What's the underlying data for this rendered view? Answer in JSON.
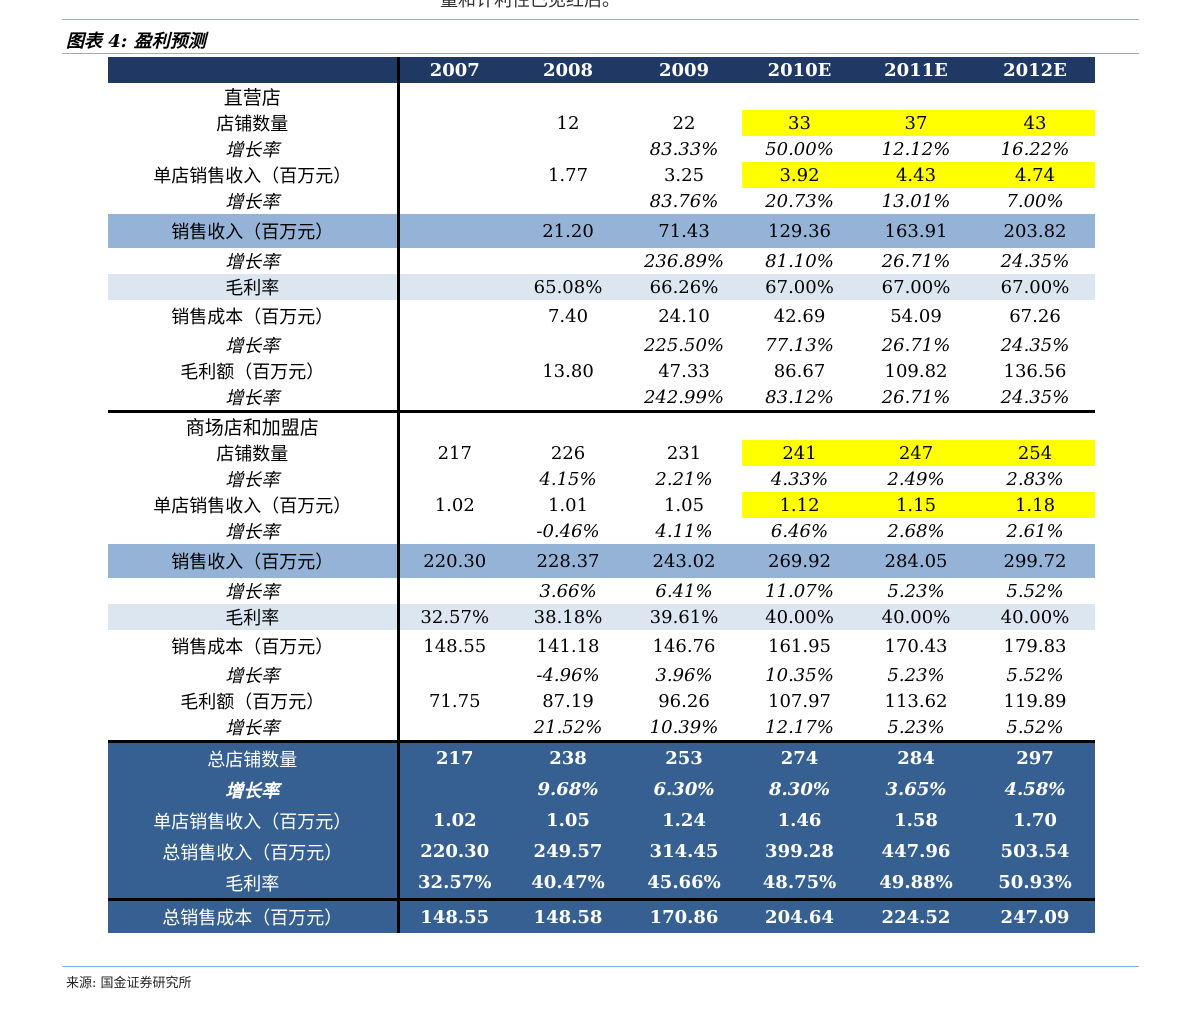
{
  "top_text": "量和计利性已见红后。",
  "caption": "图表 4:  盈利预测",
  "source": "来源:  国金证券研究所",
  "columns": [
    "2007",
    "2008",
    "2009",
    "2010E",
    "2011E",
    "2012E"
  ],
  "rows": [
    {
      "label": "直营店",
      "style": "sect",
      "cells": [
        "",
        "",
        "",
        "",
        "",
        ""
      ]
    },
    {
      "label": "店铺数量",
      "style": "r",
      "cells": [
        "",
        "12",
        "22",
        "33",
        "37",
        "43"
      ],
      "yellow": [
        3,
        4,
        5
      ]
    },
    {
      "label": "增长率",
      "style": "r it",
      "cells": [
        "",
        "",
        "83.33%",
        "50.00%",
        "12.12%",
        "16.22%"
      ]
    },
    {
      "label": "单店销售收入（百万元）",
      "style": "r",
      "cells": [
        "",
        "1.77",
        "3.25",
        "3.92",
        "4.43",
        "4.74"
      ],
      "yellow": [
        3,
        4,
        5
      ]
    },
    {
      "label": "增长率",
      "style": "r it",
      "cells": [
        "",
        "",
        "83.76%",
        "20.73%",
        "13.01%",
        "7.00%"
      ]
    },
    {
      "label": "销售收入（百万元）",
      "style": "band",
      "cells": [
        "",
        "21.20",
        "71.43",
        "129.36",
        "163.91",
        "203.82"
      ]
    },
    {
      "label": "增长率",
      "style": "r it",
      "cells": [
        "",
        "",
        "236.89%",
        "81.10%",
        "26.71%",
        "24.35%"
      ]
    },
    {
      "label": "毛利率",
      "style": "r light",
      "cells": [
        "",
        "65.08%",
        "66.26%",
        "67.00%",
        "67.00%",
        "67.00%"
      ]
    },
    {
      "label": "销售成本（百万元）",
      "style": "r tall",
      "cells": [
        "",
        "7.40",
        "24.10",
        "42.69",
        "54.09",
        "67.26"
      ]
    },
    {
      "label": "增长率",
      "style": "r it",
      "cells": [
        "",
        "",
        "225.50%",
        "77.13%",
        "26.71%",
        "24.35%"
      ]
    },
    {
      "label": "毛利额（百万元）",
      "style": "r",
      "cells": [
        "",
        "13.80",
        "47.33",
        "86.67",
        "109.82",
        "136.56"
      ]
    },
    {
      "label": "增长率",
      "style": "r it",
      "cells": [
        "",
        "",
        "242.99%",
        "83.12%",
        "26.71%",
        "24.35%"
      ]
    },
    {
      "label": "商场店和加盟店",
      "style": "sect sep",
      "cells": [
        "",
        "",
        "",
        "",
        "",
        ""
      ]
    },
    {
      "label": "店铺数量",
      "style": "r",
      "cells": [
        "217",
        "226",
        "231",
        "241",
        "247",
        "254"
      ],
      "yellow": [
        3,
        4,
        5
      ]
    },
    {
      "label": "增长率",
      "style": "r it",
      "cells": [
        "",
        "4.15%",
        "2.21%",
        "4.33%",
        "2.49%",
        "2.83%"
      ]
    },
    {
      "label": "单店销售收入（百万元）",
      "style": "r",
      "cells": [
        "1.02",
        "1.01",
        "1.05",
        "1.12",
        "1.15",
        "1.18"
      ],
      "yellow": [
        3,
        4,
        5
      ]
    },
    {
      "label": "增长率",
      "style": "r it",
      "cells": [
        "",
        "-0.46%",
        "4.11%",
        "6.46%",
        "2.68%",
        "2.61%"
      ]
    },
    {
      "label": "销售收入（百万元）",
      "style": "band",
      "cells": [
        "220.30",
        "228.37",
        "243.02",
        "269.92",
        "284.05",
        "299.72"
      ]
    },
    {
      "label": "增长率",
      "style": "r it",
      "cells": [
        "",
        "3.66%",
        "6.41%",
        "11.07%",
        "5.23%",
        "5.52%"
      ]
    },
    {
      "label": "毛利率",
      "style": "r light",
      "cells": [
        "32.57%",
        "38.18%",
        "39.61%",
        "40.00%",
        "40.00%",
        "40.00%"
      ]
    },
    {
      "label": "销售成本（百万元）",
      "style": "r tall",
      "cells": [
        "148.55",
        "141.18",
        "146.76",
        "161.95",
        "170.43",
        "179.83"
      ]
    },
    {
      "label": "增长率",
      "style": "r it",
      "cells": [
        "",
        "-4.96%",
        "3.96%",
        "10.35%",
        "5.23%",
        "5.52%"
      ]
    },
    {
      "label": "毛利额（百万元）",
      "style": "r",
      "cells": [
        "71.75",
        "87.19",
        "96.26",
        "107.97",
        "113.62",
        "119.89"
      ]
    },
    {
      "label": "增长率",
      "style": "r it",
      "cells": [
        "",
        "21.52%",
        "10.39%",
        "12.17%",
        "5.23%",
        "5.52%"
      ]
    },
    {
      "label": "总店铺数量",
      "style": "sum sep",
      "cells": [
        "217",
        "238",
        "253",
        "274",
        "284",
        "297"
      ]
    },
    {
      "label": "增长率",
      "style": "sum it",
      "cells": [
        "",
        "9.68%",
        "6.30%",
        "8.30%",
        "3.65%",
        "4.58%"
      ]
    },
    {
      "label": "单店销售收入（百万元）",
      "style": "sum",
      "cells": [
        "1.02",
        "1.05",
        "1.24",
        "1.46",
        "1.58",
        "1.70"
      ]
    },
    {
      "label": "总销售收入（百万元）",
      "style": "sum",
      "cells": [
        "220.30",
        "249.57",
        "314.45",
        "399.28",
        "447.96",
        "503.54"
      ]
    },
    {
      "label": "毛利率",
      "style": "sum",
      "cells": [
        "32.57%",
        "40.47%",
        "45.66%",
        "48.75%",
        "49.88%",
        "50.93%"
      ]
    },
    {
      "label": "总销售成本（百万元）",
      "style": "sum sumlast",
      "cells": [
        "148.55",
        "148.58",
        "170.86",
        "204.64",
        "224.52",
        "247.09"
      ]
    }
  ]
}
